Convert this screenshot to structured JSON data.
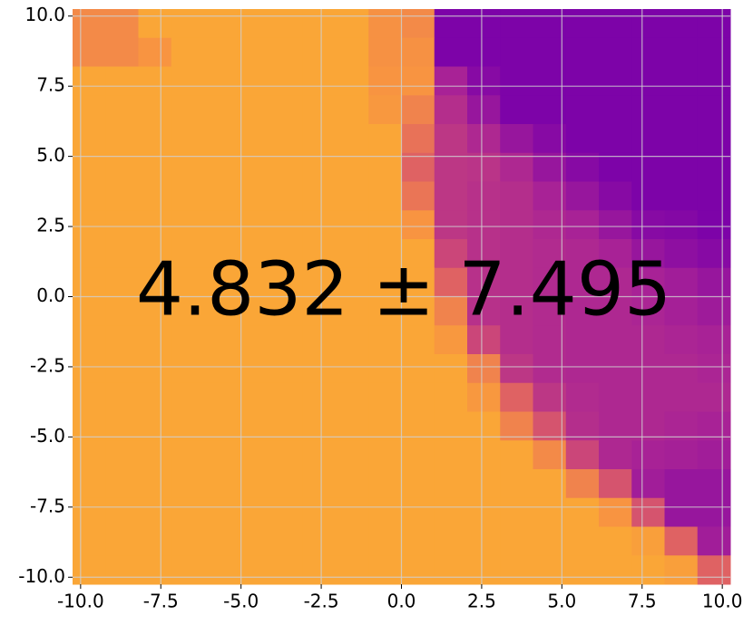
{
  "chart_data": {
    "type": "heatmap",
    "colormap": "plasma",
    "grid": true,
    "annotation": "4.832 ± 7.495",
    "xlim": [
      -10.25,
      10.25
    ],
    "ylim": [
      -10.25,
      10.25
    ],
    "xticks": [
      {
        "value": -10,
        "label": "-10.0"
      },
      {
        "value": -7.5,
        "label": "-7.5"
      },
      {
        "value": -5,
        "label": "-5.0"
      },
      {
        "value": -2.5,
        "label": "-2.5"
      },
      {
        "value": 0,
        "label": "0.0"
      },
      {
        "value": 2.5,
        "label": "2.5"
      },
      {
        "value": 5,
        "label": "5.0"
      },
      {
        "value": 7.5,
        "label": "7.5"
      },
      {
        "value": 10,
        "label": "10.0"
      }
    ],
    "yticks": [
      {
        "value": -10,
        "label": "-10.0"
      },
      {
        "value": -7.5,
        "label": "-7.5"
      },
      {
        "value": -5,
        "label": "-5.0"
      },
      {
        "value": -2.5,
        "label": "-2.5"
      },
      {
        "value": 0,
        "label": "0.0"
      },
      {
        "value": 2.5,
        "label": "2.5"
      },
      {
        "value": 5,
        "label": "5.0"
      },
      {
        "value": 7.5,
        "label": "7.5"
      },
      {
        "value": 10,
        "label": "10.0"
      }
    ],
    "z": [
      [
        0.72,
        0.72,
        0.8,
        0.8,
        0.8,
        0.8,
        0.8,
        0.8,
        0.8,
        0.74,
        0.72,
        0.25,
        0.25,
        0.25,
        0.25,
        0.25,
        0.25,
        0.25,
        0.25,
        0.25
      ],
      [
        0.72,
        0.72,
        0.75,
        0.8,
        0.8,
        0.8,
        0.8,
        0.8,
        0.8,
        0.74,
        0.74,
        0.25,
        0.25,
        0.25,
        0.25,
        0.25,
        0.25,
        0.25,
        0.25,
        0.25
      ],
      [
        0.8,
        0.8,
        0.8,
        0.8,
        0.8,
        0.8,
        0.8,
        0.8,
        0.8,
        0.75,
        0.75,
        0.38,
        0.28,
        0.25,
        0.25,
        0.25,
        0.25,
        0.25,
        0.25,
        0.25
      ],
      [
        0.8,
        0.8,
        0.8,
        0.8,
        0.8,
        0.8,
        0.8,
        0.8,
        0.8,
        0.76,
        0.7,
        0.42,
        0.33,
        0.25,
        0.25,
        0.25,
        0.25,
        0.25,
        0.25,
        0.25
      ],
      [
        0.8,
        0.8,
        0.8,
        0.8,
        0.8,
        0.8,
        0.8,
        0.8,
        0.8,
        0.8,
        0.65,
        0.45,
        0.4,
        0.33,
        0.28,
        0.25,
        0.25,
        0.25,
        0.25,
        0.25
      ],
      [
        0.8,
        0.8,
        0.8,
        0.8,
        0.8,
        0.8,
        0.8,
        0.8,
        0.8,
        0.8,
        0.6,
        0.45,
        0.44,
        0.4,
        0.33,
        0.28,
        0.25,
        0.25,
        0.25,
        0.25
      ],
      [
        0.8,
        0.8,
        0.8,
        0.8,
        0.8,
        0.8,
        0.8,
        0.8,
        0.8,
        0.8,
        0.66,
        0.45,
        0.43,
        0.42,
        0.38,
        0.33,
        0.28,
        0.25,
        0.25,
        0.25
      ],
      [
        0.8,
        0.8,
        0.8,
        0.8,
        0.8,
        0.8,
        0.8,
        0.8,
        0.8,
        0.8,
        0.75,
        0.45,
        0.43,
        0.42,
        0.4,
        0.38,
        0.33,
        0.28,
        0.27,
        0.25
      ],
      [
        0.8,
        0.8,
        0.8,
        0.8,
        0.8,
        0.8,
        0.8,
        0.8,
        0.8,
        0.8,
        0.8,
        0.5,
        0.43,
        0.42,
        0.41,
        0.4,
        0.38,
        0.33,
        0.3,
        0.28
      ],
      [
        0.8,
        0.8,
        0.8,
        0.8,
        0.8,
        0.8,
        0.8,
        0.8,
        0.8,
        0.8,
        0.8,
        0.6,
        0.43,
        0.42,
        0.41,
        0.4,
        0.4,
        0.38,
        0.36,
        0.33
      ],
      [
        0.8,
        0.8,
        0.8,
        0.8,
        0.8,
        0.8,
        0.8,
        0.8,
        0.8,
        0.8,
        0.8,
        0.7,
        0.43,
        0.42,
        0.41,
        0.4,
        0.4,
        0.39,
        0.37,
        0.35
      ],
      [
        0.8,
        0.8,
        0.8,
        0.8,
        0.8,
        0.8,
        0.8,
        0.8,
        0.8,
        0.8,
        0.8,
        0.76,
        0.5,
        0.42,
        0.41,
        0.4,
        0.4,
        0.4,
        0.39,
        0.38
      ],
      [
        0.8,
        0.8,
        0.8,
        0.8,
        0.8,
        0.8,
        0.8,
        0.8,
        0.8,
        0.8,
        0.8,
        0.8,
        0.7,
        0.45,
        0.41,
        0.4,
        0.4,
        0.4,
        0.4,
        0.39
      ],
      [
        0.8,
        0.8,
        0.8,
        0.8,
        0.8,
        0.8,
        0.8,
        0.8,
        0.8,
        0.8,
        0.8,
        0.8,
        0.76,
        0.6,
        0.45,
        0.41,
        0.4,
        0.4,
        0.4,
        0.4
      ],
      [
        0.8,
        0.8,
        0.8,
        0.8,
        0.8,
        0.8,
        0.8,
        0.8,
        0.8,
        0.8,
        0.8,
        0.8,
        0.8,
        0.7,
        0.55,
        0.42,
        0.4,
        0.4,
        0.39,
        0.38
      ],
      [
        0.8,
        0.8,
        0.8,
        0.8,
        0.8,
        0.8,
        0.8,
        0.8,
        0.8,
        0.8,
        0.8,
        0.8,
        0.8,
        0.8,
        0.72,
        0.5,
        0.4,
        0.38,
        0.37,
        0.36
      ],
      [
        0.8,
        0.8,
        0.8,
        0.8,
        0.8,
        0.8,
        0.8,
        0.8,
        0.8,
        0.8,
        0.8,
        0.8,
        0.8,
        0.8,
        0.8,
        0.7,
        0.55,
        0.36,
        0.33,
        0.33
      ],
      [
        0.8,
        0.8,
        0.8,
        0.8,
        0.8,
        0.8,
        0.8,
        0.8,
        0.8,
        0.8,
        0.8,
        0.8,
        0.8,
        0.8,
        0.8,
        0.8,
        0.75,
        0.55,
        0.33,
        0.33
      ],
      [
        0.8,
        0.8,
        0.8,
        0.8,
        0.8,
        0.8,
        0.8,
        0.8,
        0.8,
        0.8,
        0.8,
        0.8,
        0.8,
        0.8,
        0.8,
        0.8,
        0.8,
        0.78,
        0.6,
        0.36
      ],
      [
        0.8,
        0.8,
        0.8,
        0.8,
        0.8,
        0.8,
        0.8,
        0.8,
        0.8,
        0.8,
        0.8,
        0.8,
        0.8,
        0.8,
        0.8,
        0.8,
        0.8,
        0.8,
        0.78,
        0.6
      ]
    ]
  }
}
